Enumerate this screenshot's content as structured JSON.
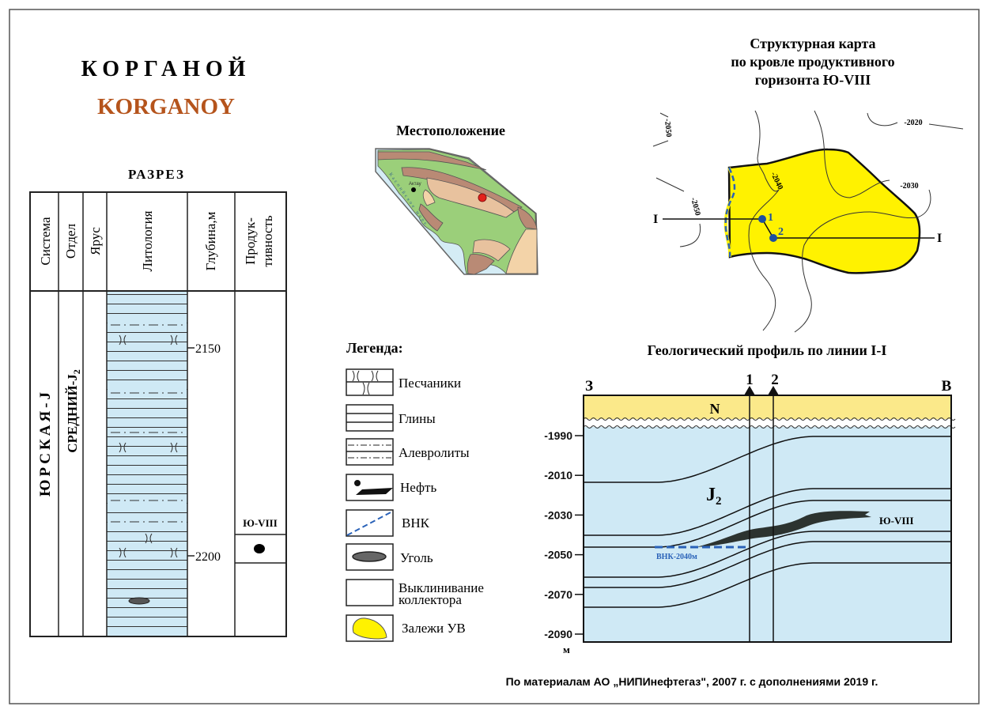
{
  "title": {
    "ru": "КОРГАНОЙ",
    "en": "KORGANOY",
    "en_color": "#b5541c"
  },
  "section": {
    "title": "РАЗРЕЗ",
    "headers": [
      "Система",
      "Отдел",
      "Ярус",
      "Литология",
      "Глубина,м",
      "Продук-",
      "тивность"
    ],
    "system": "ЮРСКАЯ-J",
    "series": "СРЕДНИЙ-J",
    "series_sub": "2",
    "depths": [
      "2150",
      "2200"
    ],
    "horizon": "Ю-VIII",
    "lithology_fill": "#cfe9f5"
  },
  "location": {
    "title": "Местоположение",
    "city": "Актау",
    "sea": "Каспийское море"
  },
  "legend": {
    "title": "Легенда:",
    "items": [
      {
        "label": "Песчаники"
      },
      {
        "label": "Глины"
      },
      {
        "label": "Алевролиты"
      },
      {
        "label": "Нефть"
      },
      {
        "label": "ВНК"
      },
      {
        "label": "Уголь"
      },
      {
        "label": "Выклинивание",
        "label2": "коллектора"
      },
      {
        "label": "Залежи УВ"
      }
    ]
  },
  "structure_map": {
    "title_lines": [
      "Структурная карта",
      "по кровле продуктивного",
      "горизонта Ю-VIII"
    ],
    "contours": [
      "-2050",
      "-2050",
      "-2040",
      "-2030",
      "-2020"
    ],
    "wells": [
      "1",
      "2"
    ],
    "line_label": "I",
    "deposit_color": "#fff200"
  },
  "profile": {
    "title": "Геологический профиль по линии I-I",
    "west": "З",
    "east": "В",
    "wells": [
      "1",
      "2"
    ],
    "neogene": "N",
    "jurassic": "J",
    "jurassic_sub": "2",
    "horizon": "Ю-VIII",
    "owc": "ВНК-2040м",
    "y_ticks": [
      "-1990",
      "-2010",
      "-2030",
      "-2050",
      "-2070",
      "-2090"
    ],
    "y_unit": "м"
  },
  "footer": "По материалам АО „НИПИнефтегаз\", 2007 г. с дополнениями 2019 г."
}
